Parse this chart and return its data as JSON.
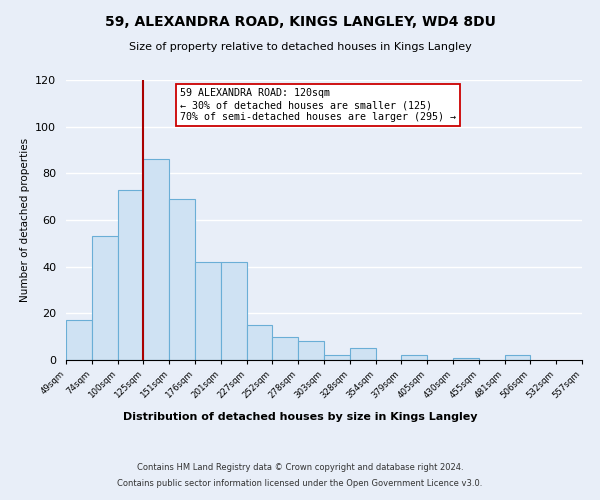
{
  "title": "59, ALEXANDRA ROAD, KINGS LANGLEY, WD4 8DU",
  "subtitle": "Size of property relative to detached houses in Kings Langley",
  "xlabel": "Distribution of detached houses by size in Kings Langley",
  "ylabel": "Number of detached properties",
  "bar_values": [
    17,
    53,
    73,
    86,
    69,
    42,
    42,
    15,
    10,
    8,
    2,
    5,
    0,
    2,
    0,
    1,
    0,
    2
  ],
  "bin_labels": [
    "49sqm",
    "74sqm",
    "100sqm",
    "125sqm",
    "151sqm",
    "176sqm",
    "201sqm",
    "227sqm",
    "252sqm",
    "278sqm",
    "303sqm",
    "328sqm",
    "354sqm",
    "379sqm",
    "405sqm",
    "430sqm",
    "455sqm",
    "481sqm",
    "506sqm",
    "532sqm",
    "557sqm"
  ],
  "bar_color": "#cfe2f3",
  "bar_edge_color": "#6aaed6",
  "vline_color": "#aa0000",
  "annotation_title": "59 ALEXANDRA ROAD: 120sqm",
  "annotation_line1": "← 30% of detached houses are smaller (125)",
  "annotation_line2": "70% of semi-detached houses are larger (295) →",
  "annotation_box_edge": "#cc0000",
  "ylim": [
    0,
    120
  ],
  "yticks": [
    0,
    20,
    40,
    60,
    80,
    100,
    120
  ],
  "footer1": "Contains HM Land Registry data © Crown copyright and database right 2024.",
  "footer2": "Contains public sector information licensed under the Open Government Licence v3.0.",
  "background_color": "#e8eef8",
  "plot_background": "#e8eef8",
  "grid_color": "#ffffff"
}
